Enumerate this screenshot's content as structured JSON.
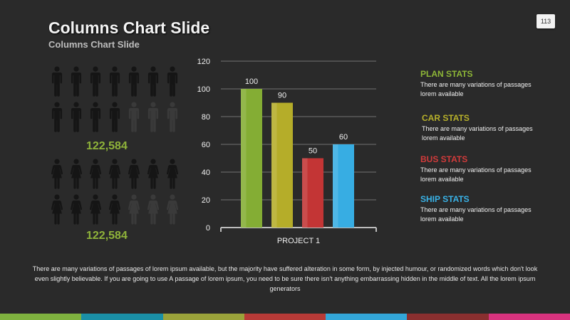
{
  "slide": {
    "title": "Columns Chart Slide",
    "subtitle": "Columns Chart Slide",
    "page_number": "113"
  },
  "people": {
    "count_top": "122,584",
    "count_bottom": "122,584",
    "count_color": "#8fb33a",
    "icon_dark": "#151515",
    "icon_mid": "#3a3a3a",
    "top_group": {
      "rows": [
        [
          "man-icon",
          "man-icon",
          "man-icon",
          "man-icon",
          "man-icon",
          "man-icon",
          "man-icon"
        ],
        [
          "man-icon",
          "man-icon",
          "man-icon",
          "man-icon",
          "man-icon",
          "man-icon",
          "man-icon"
        ]
      ],
      "highlighted_per_row": [
        7,
        4
      ]
    },
    "bottom_group": {
      "rows": [
        [
          "woman-icon",
          "woman-icon",
          "woman-icon",
          "woman-icon",
          "woman-icon",
          "woman-icon",
          "woman-icon"
        ],
        [
          "woman-icon",
          "woman-icon",
          "woman-icon",
          "woman-icon",
          "woman-icon",
          "woman-icon",
          "woman-icon"
        ]
      ],
      "highlighted_per_row": [
        7,
        4
      ]
    }
  },
  "chart_data": {
    "type": "bar",
    "categories": [
      "PROJECT 1"
    ],
    "series": [
      {
        "values": [
          100
        ],
        "color": "#84ad34"
      },
      {
        "values": [
          90
        ],
        "color": "#b5ad29"
      },
      {
        "values": [
          50
        ],
        "color": "#c33535"
      },
      {
        "values": [
          60
        ],
        "color": "#37ade3"
      }
    ],
    "ylim": [
      0,
      120
    ],
    "yticks": [
      0,
      20,
      40,
      60,
      80,
      100,
      120
    ],
    "grid": true,
    "title": "",
    "xlabel": "",
    "ylabel": ""
  },
  "stats": [
    {
      "title": "PLAN STATS",
      "text": "There are many variations of passages lorem available",
      "color": "#8db637"
    },
    {
      "title": "CAR STATS",
      "text": "There are many variations of passages lorem available",
      "color": "#b8b12a"
    },
    {
      "title": "BUS STATS",
      "text": "There are many variations of passages lorem available",
      "color": "#d23b3b"
    },
    {
      "title": "SHIP STATS",
      "text": "There are many variations of passages lorem available",
      "color": "#39b3e8"
    }
  ],
  "footer": {
    "text": "There are many variations of passages of lorem ipsum available, but the majority have suffered alteration in some form, by injected humour, or randomized words which don't look even slightly believable. If you are going to use A passage of lorem ipsum, you need to be sure there isn't anything embarrassing hidden in the middle of text. All the lorem ipsum generators"
  },
  "color_bar": [
    "#7fb23f",
    "#1a8fa6",
    "#9aa23a",
    "#b73a37",
    "#33a6d8",
    "#8a2f2f",
    "#d8337e"
  ]
}
